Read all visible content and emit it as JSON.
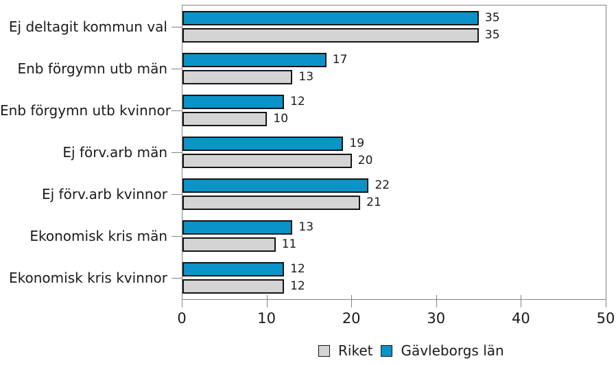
{
  "chart_data": {
    "type": "bar",
    "orientation": "horizontal",
    "title": "",
    "categories": [
      "Ej deltagit kommun val",
      "Enb förgymn utb män",
      "Enb förgymn utb kvinnor",
      "Ej förv.arb män",
      "Ej förv.arb kvinnor",
      "Ekonomisk kris män",
      "Ekonomisk kris kvinnor"
    ],
    "series": [
      {
        "name": "Gävleborgs län",
        "color": "#0a93c9",
        "values": [
          35,
          17,
          12,
          19,
          22,
          13,
          12
        ]
      },
      {
        "name": "Riket",
        "color": "#d4d4d4",
        "values": [
          35,
          13,
          10,
          20,
          21,
          11,
          12
        ]
      }
    ],
    "bar_order_note": "within each category the Gävleborgs län (blue) bar is on top, Riket (gray) below",
    "data_labels_shown": true,
    "grid": false,
    "x_axis": {
      "min": 0,
      "max": 50,
      "tick_step": 10,
      "tick_labels": [
        "0",
        "10",
        "20",
        "30",
        "40",
        "50"
      ]
    },
    "legend": {
      "position": "bottom",
      "entries": [
        {
          "label": "Riket",
          "color": "#d4d4d4"
        },
        {
          "label": "Gävleborgs län",
          "color": "#0a93c9"
        }
      ]
    }
  },
  "colors": {
    "bar_border": "#141414",
    "axis": "#848484",
    "text": "#1a1a1a",
    "background": "#ffffff"
  }
}
